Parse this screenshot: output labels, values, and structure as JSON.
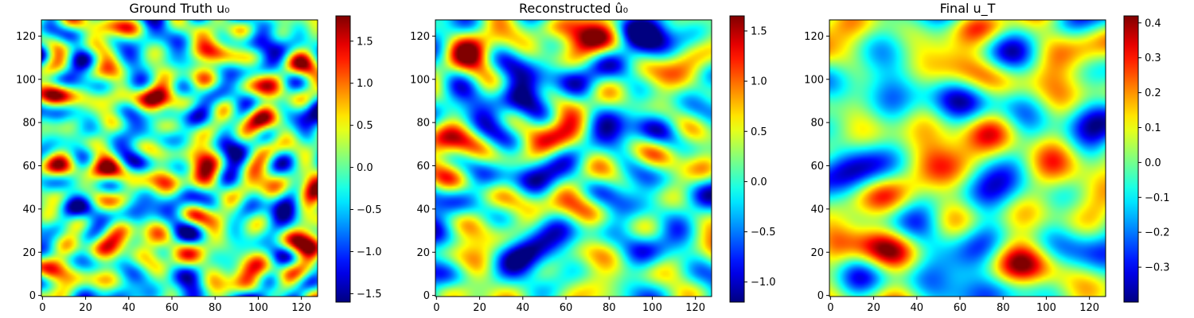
{
  "chart_data": [
    {
      "type": "heatmap",
      "title": "Ground Truth u₀",
      "colormap": "jet",
      "grid_size": [
        128,
        128
      ],
      "xlim": [
        0,
        127
      ],
      "ylim": [
        0,
        127
      ],
      "x_ticks": [
        "0",
        "20",
        "40",
        "60",
        "80",
        "100",
        "120"
      ],
      "y_ticks": [
        "0",
        "20",
        "40",
        "60",
        "80",
        "100",
        "120"
      ],
      "colorbar": {
        "min": -1.6,
        "max": 1.8,
        "ticks": [
          "−1.5",
          "−1.0",
          "−0.5",
          "0.0",
          "0.5",
          "1.0",
          "1.5"
        ],
        "tick_values": [
          -1.5,
          -1.0,
          -0.5,
          0.0,
          0.5,
          1.0,
          1.5
        ]
      },
      "field": {
        "freq_scale": 1.9,
        "amplitude": 0.9,
        "seed": 11
      }
    },
    {
      "type": "heatmap",
      "title": "Reconstructed û₀",
      "colormap": "jet",
      "grid_size": [
        128,
        128
      ],
      "xlim": [
        0,
        127
      ],
      "ylim": [
        0,
        127
      ],
      "x_ticks": [
        "0",
        "20",
        "40",
        "60",
        "80",
        "100",
        "120"
      ],
      "y_ticks": [
        "0",
        "20",
        "40",
        "60",
        "80",
        "100",
        "120"
      ],
      "colorbar": {
        "min": -1.2,
        "max": 1.65,
        "ticks": [
          "−1.0",
          "−0.5",
          "0.0",
          "0.5",
          "1.0",
          "1.5"
        ],
        "tick_values": [
          -1.0,
          -0.5,
          0.0,
          0.5,
          1.0,
          1.5
        ]
      },
      "field": {
        "freq_scale": 1.35,
        "amplitude": 0.75,
        "seed": 23
      }
    },
    {
      "type": "heatmap",
      "title": "Final u_T",
      "colormap": "jet",
      "grid_size": [
        128,
        128
      ],
      "xlim": [
        0,
        127
      ],
      "ylim": [
        0,
        127
      ],
      "x_ticks": [
        "0",
        "20",
        "40",
        "60",
        "80",
        "100",
        "120"
      ],
      "y_ticks": [
        "0",
        "20",
        "40",
        "60",
        "80",
        "100",
        "120"
      ],
      "colorbar": {
        "min": -0.4,
        "max": 0.42,
        "ticks": [
          "−0.3",
          "−0.2",
          "−0.1",
          "0.0",
          "0.1",
          "0.2",
          "0.3",
          "0.4"
        ],
        "tick_values": [
          -0.3,
          -0.2,
          -0.1,
          0.0,
          0.1,
          0.2,
          0.3,
          0.4
        ]
      },
      "field": {
        "freq_scale": 1.0,
        "amplitude": 0.2,
        "seed": 37
      }
    }
  ]
}
